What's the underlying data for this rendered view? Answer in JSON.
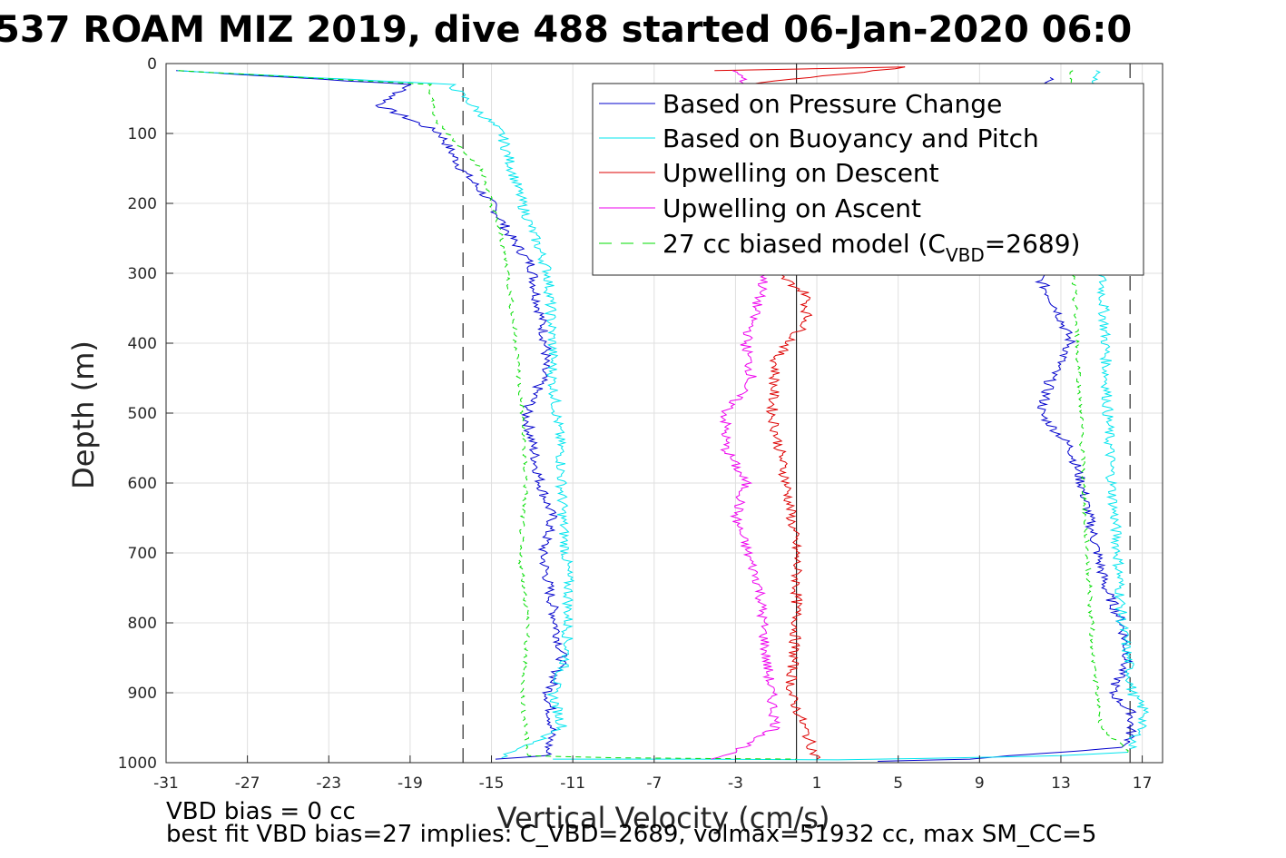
{
  "chart_data": {
    "type": "line",
    "title": "537 ROAM MIZ 2019, dive 488 started 06-Jan-2020 06:0",
    "xlabel": "Vertical Velocity (cm/s)",
    "ylabel": "Depth (m)",
    "xlim": [
      -31,
      18
    ],
    "ylim": [
      0,
      1000
    ],
    "y_reversed": true,
    "grid": true,
    "x_ticks": [
      -31,
      -27,
      -23,
      -19,
      -15,
      -11,
      -7,
      -3,
      1,
      5,
      9,
      13,
      17
    ],
    "y_ticks": [
      0,
      100,
      200,
      300,
      400,
      500,
      600,
      700,
      800,
      900,
      1000
    ],
    "reference_lines": {
      "solid_x": 0,
      "dashed_x": [
        -16.4,
        16.4
      ]
    },
    "legend": {
      "placement": "top-right",
      "entries": [
        {
          "label": "Based on Pressure Change",
          "color": "#0000cc",
          "style": "solid"
        },
        {
          "label": "Based on Buoyancy and Pitch",
          "color": "#00e5ee",
          "style": "solid"
        },
        {
          "label": "Upwelling on Descent",
          "color": "#dd0000",
          "style": "solid"
        },
        {
          "label": "Upwelling on Ascent",
          "color": "#ee00ee",
          "style": "solid"
        },
        {
          "label_main": "27 cc biased model (C",
          "label_sub": "VBD",
          "label_end": "=2689)",
          "color": "#00dd00",
          "style": "dashed"
        }
      ]
    },
    "series": [
      {
        "color": "#0000cc",
        "style": "solid",
        "x": [
          -30.5,
          -19,
          -20.5,
          -17.5,
          -16.5,
          -15,
          -14,
          -13,
          -12.8,
          -12.5,
          -12.3,
          -12.5,
          -13.3,
          -12.6,
          -12.0,
          -12.5,
          -11.5,
          -12.2,
          -12.0,
          -12.3,
          -14.8
        ],
        "y": [
          10,
          30,
          60,
          100,
          150,
          200,
          250,
          290,
          330,
          370,
          410,
          450,
          500,
          600,
          650,
          700,
          850,
          900,
          950,
          990,
          995
        ]
      },
      {
        "color": "#0000cc",
        "style": "solid",
        "x": [
          4,
          8.5,
          10.5,
          12,
          14,
          16,
          16.4
        ],
        "y": [
          998,
          995,
          990,
          987,
          983,
          978,
          970
        ]
      },
      {
        "color": "#0000cc",
        "style": "solid",
        "x": [
          12.5,
          12.0,
          12.8,
          13.5,
          12.5,
          12.0,
          13.5,
          14.0,
          14.8,
          15.2,
          16.0,
          16.3,
          15.5,
          16.5,
          16.4
        ],
        "y": [
          20,
          310,
          350,
          400,
          450,
          500,
          550,
          600,
          700,
          750,
          800,
          850,
          900,
          930,
          970
        ]
      },
      {
        "color": "#00e5ee",
        "style": "solid",
        "x": [
          -30.5,
          -17,
          -14.5,
          -13.5,
          -12.2,
          -12.0,
          -12.0,
          -11.6,
          -11.5,
          -11.2,
          -11.3,
          -12.0,
          -11.5,
          -14.5
        ],
        "y": [
          10,
          30,
          100,
          200,
          300,
          400,
          450,
          550,
          650,
          750,
          850,
          900,
          950,
          993
        ]
      },
      {
        "color": "#00e5ee",
        "style": "solid",
        "x": [
          -12,
          -5,
          2,
          8,
          13,
          16.3
        ],
        "y": [
          995,
          995,
          996,
          993,
          990,
          985
        ]
      },
      {
        "color": "#00e5ee",
        "style": "solid",
        "x": [
          14.8,
          15.0,
          15.2,
          15.3,
          15.5,
          15.8,
          16.0,
          16.3,
          16.5,
          17.2,
          16.4
        ],
        "y": [
          10,
          300,
          400,
          500,
          600,
          700,
          800,
          850,
          900,
          930,
          980
        ]
      },
      {
        "color": "#dd0000",
        "style": "solid",
        "x": [
          -4,
          5.5,
          -2.5,
          -1,
          0.5,
          0.5,
          -1.0,
          -1.2,
          -0.5,
          0.0,
          0.0,
          -0.3,
          1.0
        ],
        "y": [
          10,
          5,
          30,
          300,
          330,
          370,
          420,
          500,
          600,
          700,
          800,
          900,
          995
        ]
      },
      {
        "color": "#ee00ee",
        "style": "solid",
        "x": [
          -3,
          -2.5,
          -1.5,
          -2.5,
          -2.2,
          -3.5,
          -3.5,
          -2.5,
          -3.0,
          -1.8,
          -1.5,
          -1.0,
          -3.0,
          -4.2
        ],
        "y": [
          10,
          30,
          300,
          400,
          450,
          500,
          550,
          600,
          650,
          750,
          850,
          950,
          985,
          995
        ]
      },
      {
        "color": "#00dd00",
        "style": "dashed",
        "x": [
          -30.5,
          -18,
          -17.8,
          -15.5,
          -14.5,
          -14.2,
          -13.8,
          -13.5,
          -13.3,
          -13.6,
          -13.2,
          -13.5,
          -13.2,
          -9,
          0
        ],
        "y": [
          10,
          30,
          80,
          150,
          250,
          300,
          400,
          500,
          600,
          700,
          800,
          900,
          990,
          993,
          995
        ]
      },
      {
        "color": "#00dd00",
        "style": "dashed",
        "x": [
          13.5,
          13.6,
          13.8,
          14.0,
          14.1,
          14.3,
          14.5,
          14.6,
          14.8,
          15.0,
          16.3
        ],
        "y": [
          10,
          300,
          400,
          500,
          600,
          700,
          800,
          850,
          900,
          950,
          985
        ]
      }
    ],
    "notes": [
      "VBD bias = 0 cc",
      "best fit VBD bias=27 implies: C_VBD=2689, volmax=51932 cc, max SM_CC=5"
    ]
  }
}
